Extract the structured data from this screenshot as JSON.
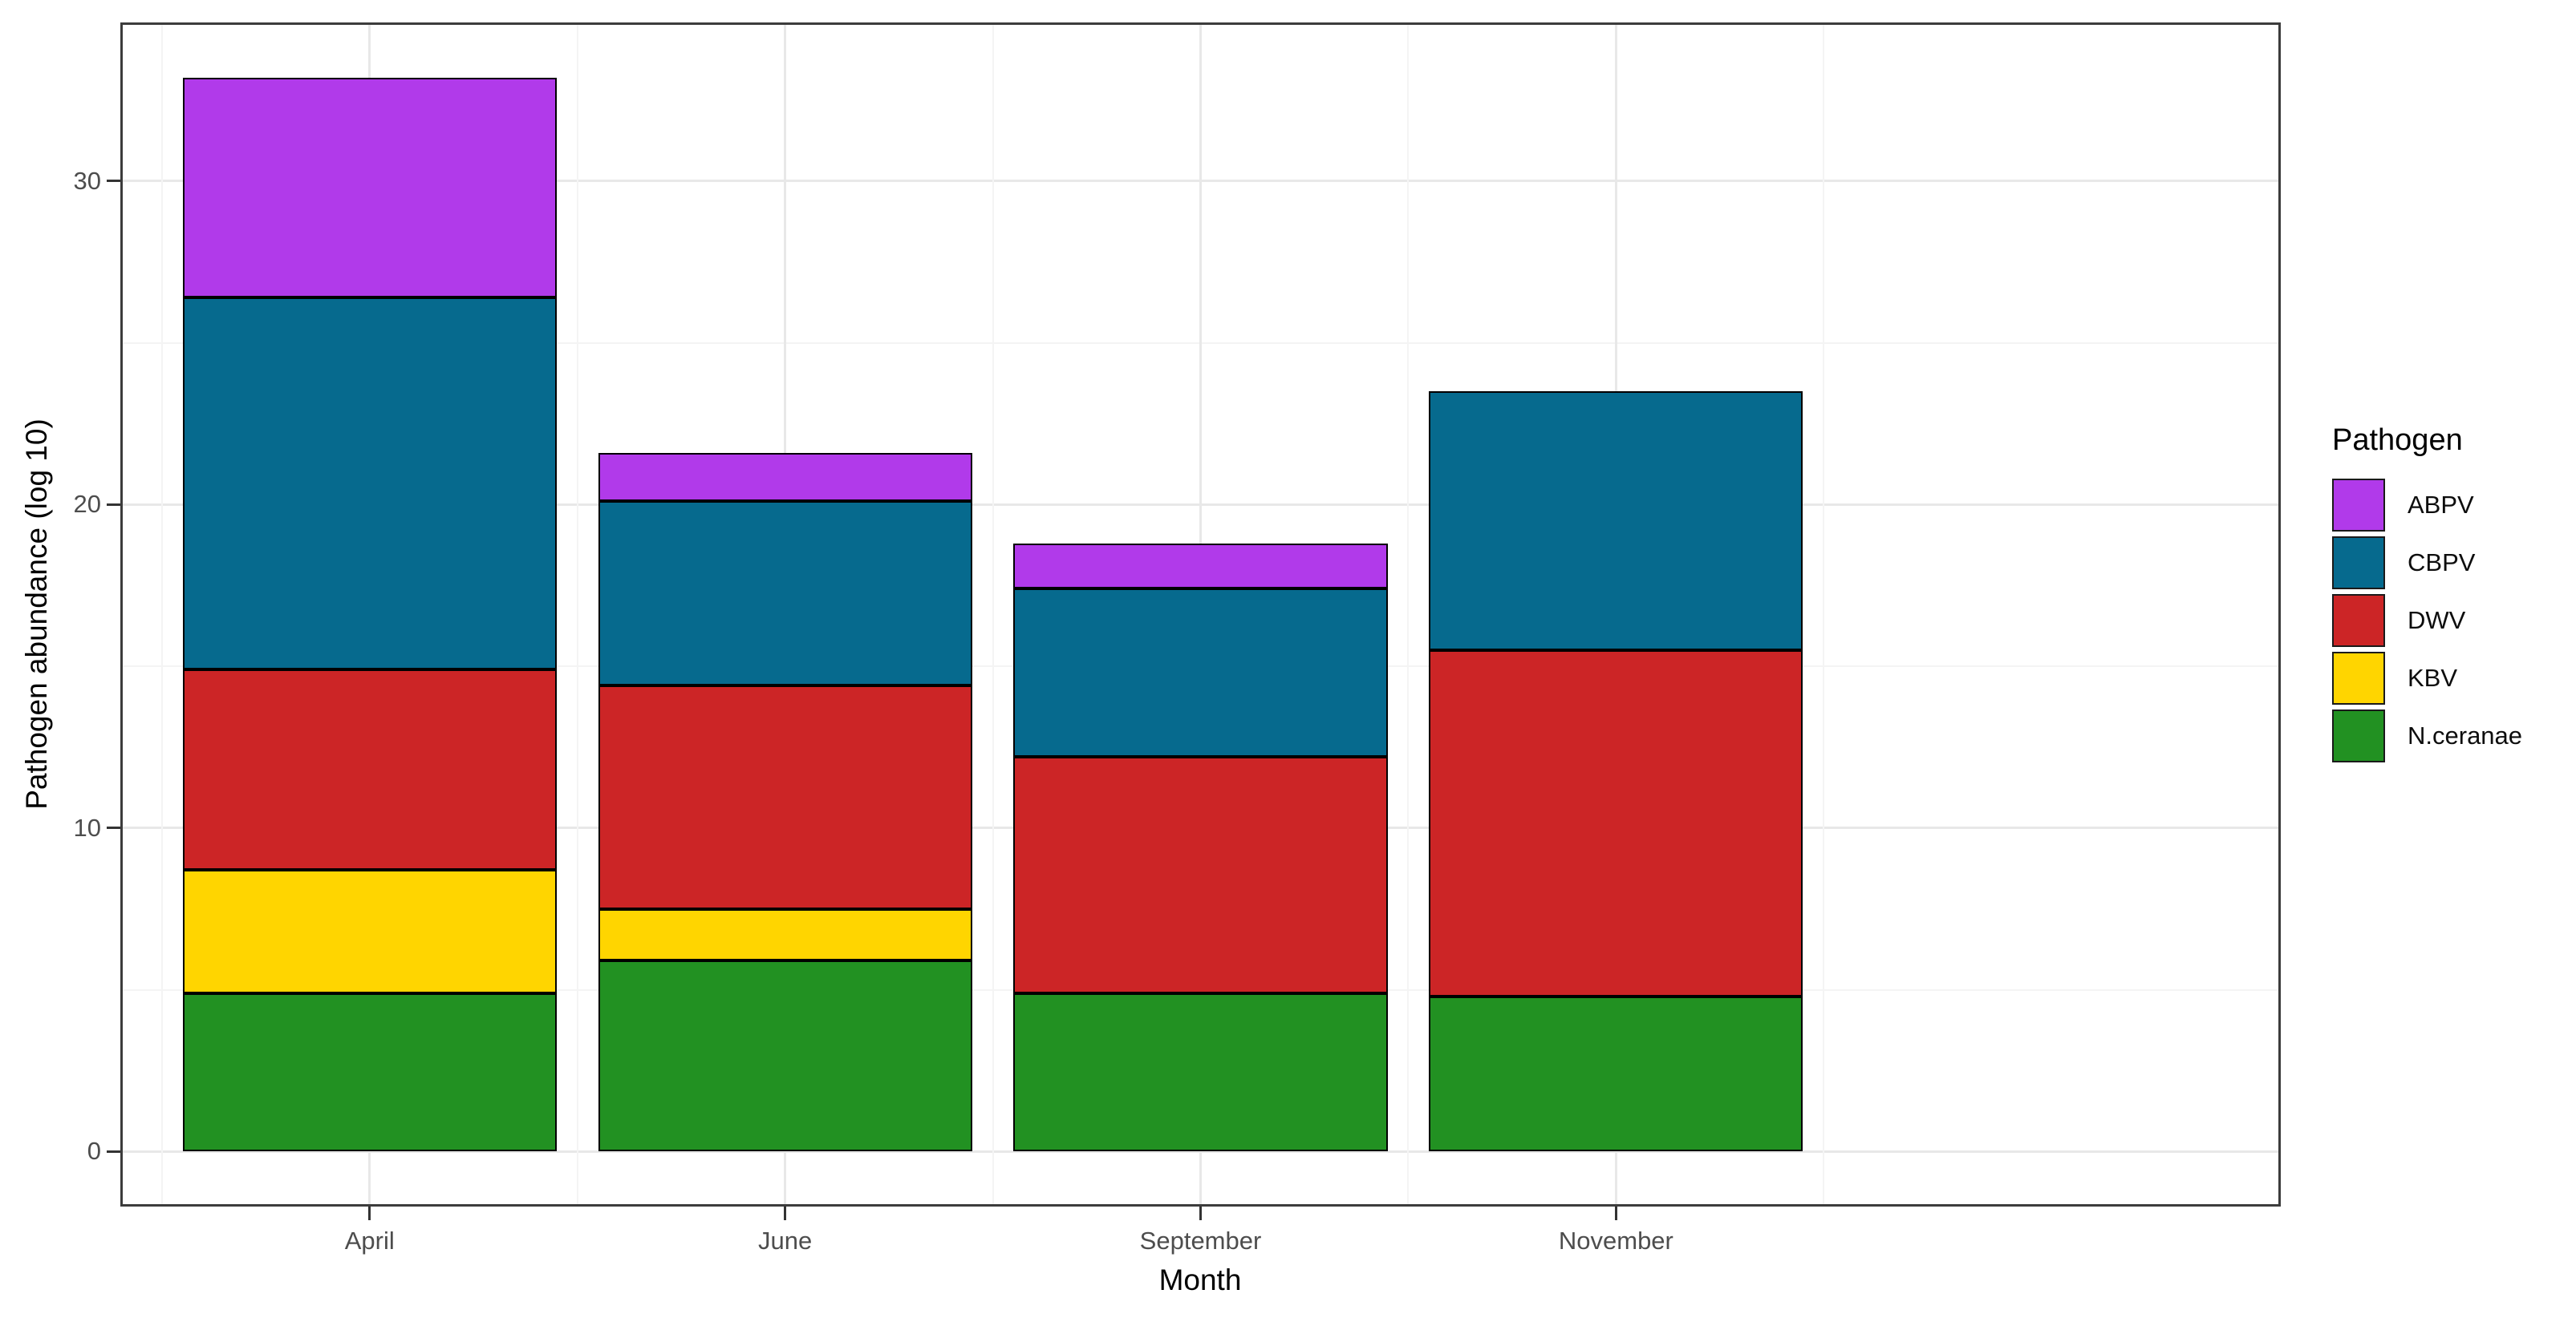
{
  "chart_data": {
    "type": "bar",
    "stacked": true,
    "title": "",
    "xlabel": "Month",
    "ylabel": "Pathogen abundance (log 10)",
    "legend_title": "Pathogen",
    "legend_position": "right",
    "categories": [
      "April",
      "June",
      "September",
      "November"
    ],
    "stack_order_bottom_to_top": [
      "N.ceranae",
      "KBV",
      "DWV",
      "CBPV",
      "ABPV"
    ],
    "series": [
      {
        "name": "N.ceranae",
        "color": "#229122",
        "values": [
          4.9,
          5.9,
          4.9,
          4.8
        ]
      },
      {
        "name": "KBV",
        "color": "#ffd500",
        "values": [
          3.8,
          1.6,
          0,
          0
        ]
      },
      {
        "name": "DWV",
        "color": "#cc2526",
        "values": [
          6.2,
          6.9,
          7.3,
          10.7
        ]
      },
      {
        "name": "CBPV",
        "color": "#066a8e",
        "values": [
          11.5,
          5.7,
          5.2,
          8.0
        ]
      },
      {
        "name": "ABPV",
        "color": "#b13aea",
        "values": [
          6.8,
          1.5,
          1.4,
          0
        ]
      }
    ],
    "stack_totals": [
      33.2,
      21.6,
      18.8,
      23.5
    ],
    "ylim": [
      -1.7,
      34.9
    ],
    "y_major_ticks": [
      0,
      10,
      20,
      30
    ],
    "y_minor_gridlines": [
      5,
      15,
      25
    ],
    "grid": true,
    "colors": {
      "panel_background": "#ffffff",
      "panel_border": "#3c3c3c",
      "grid_major": "#e8e8e8",
      "grid_minor": "#f4f4f4",
      "tick_label": "#4d4d4d",
      "bar_outline": "#000000"
    }
  }
}
